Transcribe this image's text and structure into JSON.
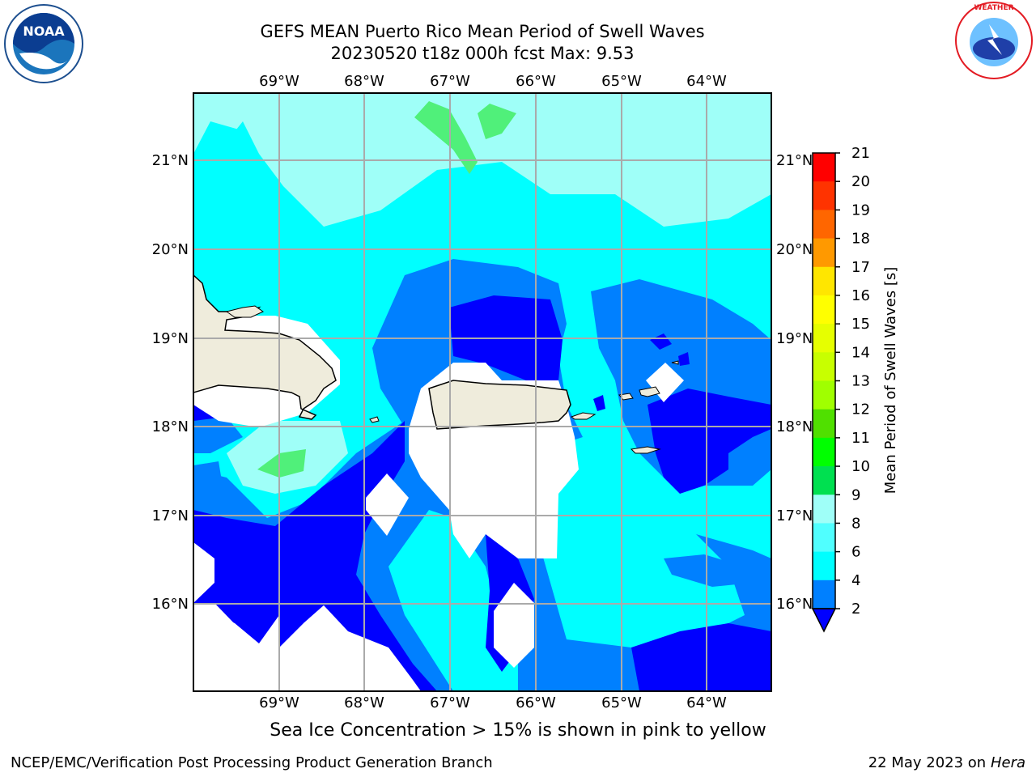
{
  "header": {
    "title_line1": "GEFS MEAN Puerto Rico Mean Period of Swell Waves",
    "title_line2": "20230520 t18z 000h fcst   Max: 9.53"
  },
  "logos": {
    "left": {
      "icon": "noaa-logo",
      "text": "NOAA"
    },
    "right": {
      "icon": "nws-logo",
      "text": "NATIONAL WEATHER SERVICE"
    }
  },
  "map": {
    "longitude_labels": [
      "69°W",
      "68°W",
      "67°W",
      "66°W",
      "65°W",
      "64°W"
    ],
    "latitude_labels": [
      "21°N",
      "20°N",
      "19°N",
      "18°N",
      "17°N",
      "16°N"
    ],
    "land_color": "#efecdc",
    "ocean_colors": {
      "level_2_4": "#0000ff",
      "level_4_6": "#0080ff",
      "level_6_8": "#00ffff",
      "level_8_9": "#9ffff8",
      "level_9_10": "#50f07a"
    }
  },
  "colorbar": {
    "label": "Mean Period of Swell Waves [s]",
    "ticks": [
      "21",
      "20",
      "19",
      "18",
      "17",
      "16",
      "15",
      "14",
      "13",
      "12",
      "11",
      "10",
      "9",
      "8",
      "6",
      "4",
      "2"
    ],
    "colors": [
      "#ff0000",
      "#ff3300",
      "#ff6600",
      "#ff9900",
      "#ffbf00",
      "#ffe600",
      "#ffff00",
      "#e6ff00",
      "#c8ff00",
      "#a0ff00",
      "#50e000",
      "#00ff00",
      "#00e050",
      "#50f07a",
      "#9ffff8",
      "#50ffff",
      "#00ffff",
      "#0080ff",
      "#0000ff"
    ]
  },
  "footer": {
    "note": "Sea Ice Concentration > 15% is shown in pink to yellow",
    "credit_left": "NCEP/EMC/Verification Post Processing Product Generation Branch",
    "credit_right_date": "22 May 2023 on",
    "credit_right_host": "Hera"
  }
}
